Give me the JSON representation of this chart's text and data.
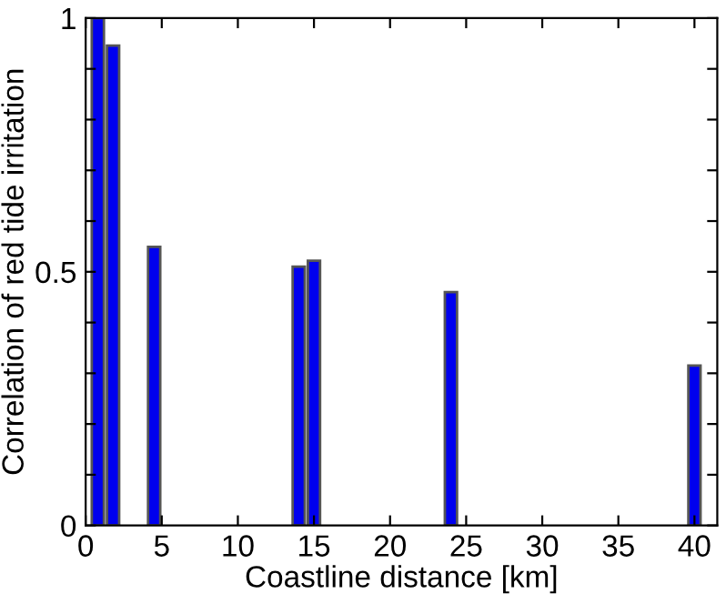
{
  "chart_data": {
    "type": "bar",
    "xlabel": "Coastline distance [km]",
    "ylabel": "Correlation of red tide irritation",
    "x": [
      0.8,
      1.8,
      4.5,
      14,
      15,
      24,
      40
    ],
    "series": [
      {
        "color": "#0000ee",
        "values": [
          1.0,
          0.946,
          0.549,
          0.51,
          0.522,
          0.46,
          0.315
        ]
      }
    ],
    "xlim": [
      0,
      41.5
    ],
    "xticks": [
      0,
      5,
      10,
      15,
      20,
      25,
      30,
      35,
      40
    ],
    "ylim": [
      0,
      1
    ],
    "yticks": [
      0,
      {
        "value": 0.1,
        "label": null
      },
      {
        "value": 0.2,
        "label": null
      },
      {
        "value": 0.3,
        "label": null
      },
      {
        "value": 0.4,
        "label": null
      },
      0.5,
      {
        "value": 0.6,
        "label": null
      },
      {
        "value": 0.7,
        "label": null
      },
      {
        "value": 0.8,
        "label": null
      },
      {
        "value": 0.9,
        "label": null
      },
      1
    ],
    "grid": false
  }
}
